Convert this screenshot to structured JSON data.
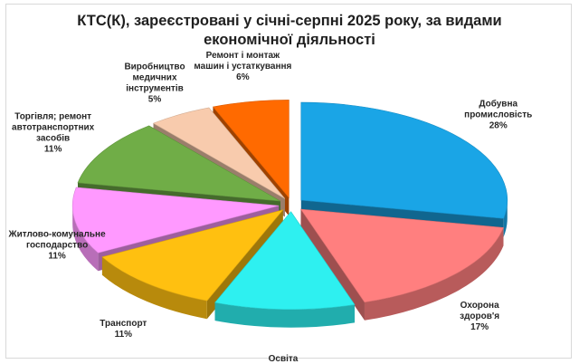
{
  "chart_data": {
    "type": "pie",
    "title_lines": [
      "КТС(К), зареєстровані у січні-серпні 2025 року, за видами",
      "економічної діяльності"
    ],
    "slices": [
      {
        "label_lines": [
          "Добувна",
          "промисловість"
        ],
        "pct_label": "28%",
        "value": 28,
        "color": "#1aa5e6"
      },
      {
        "label_lines": [
          "Охорона",
          "здоров'я"
        ],
        "pct_label": "17%",
        "value": 17,
        "color": "#ff7f7f"
      },
      {
        "label_lines": [
          "Освіта"
        ],
        "pct_label": "11%",
        "value": 11,
        "color": "#2ef0f0"
      },
      {
        "label_lines": [
          "Транспорт"
        ],
        "pct_label": "11%",
        "value": 11,
        "color": "#ffc010"
      },
      {
        "label_lines": [
          "Житлово-комунальне",
          "господарство"
        ],
        "pct_label": "11%",
        "value": 11,
        "color": "#ff99ff"
      },
      {
        "label_lines": [
          "Торгівля; ремонт",
          "автотранспортних",
          "засобів"
        ],
        "pct_label": "11%",
        "value": 11,
        "color": "#70ad47"
      },
      {
        "label_lines": [
          "Виробництво",
          "медичних",
          "інструментів"
        ],
        "pct_label": "5%",
        "value": 5,
        "color": "#f8cbad"
      },
      {
        "label_lines": [
          "Ремонт і монтаж",
          "машин і  устаткування"
        ],
        "pct_label": "6%",
        "value": 6,
        "color": "#ff6a00"
      }
    ]
  }
}
